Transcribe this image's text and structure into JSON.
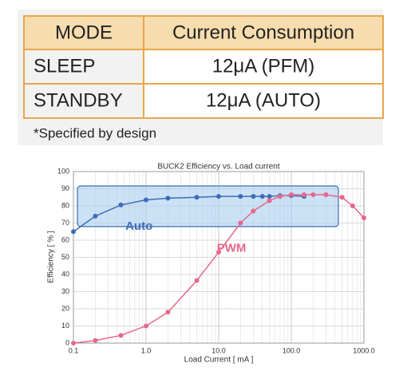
{
  "table": {
    "header": [
      "MODE",
      "Current Consumption"
    ],
    "rows": [
      [
        "SLEEP",
        "12μA (PFM)"
      ],
      [
        "STANDBY",
        "12μA (AUTO)"
      ]
    ],
    "note": "*Specified by design"
  },
  "chart_data": {
    "type": "line",
    "title": "BUCK2 Efficiency vs. Load current",
    "x_label": "Load Current [ mA ]",
    "y_label": "Efficiency [ % ]",
    "xlim": [
      0.1,
      1000
    ],
    "ylim": [
      0,
      100
    ],
    "x_log": true,
    "grid": true,
    "xticks": [
      0.1,
      {
        "value": 1,
        "label": "1.0"
      },
      {
        "value": 10,
        "label": "10.0"
      },
      {
        "value": 100,
        "label": "100.0"
      },
      {
        "value": 1000,
        "label": "1000.0"
      }
    ],
    "yticks": [
      0,
      10,
      20,
      30,
      40,
      50,
      60,
      70,
      80,
      90,
      100
    ],
    "series": [
      {
        "name": "Auto",
        "color": "#3d6db5",
        "x": [
          0.1,
          0.2,
          0.45,
          1,
          2,
          5,
          10,
          20,
          30,
          40,
          50,
          70,
          100,
          150
        ],
        "values": [
          65,
          74,
          80.5,
          83.5,
          84.5,
          85,
          85.5,
          85.5,
          85.5,
          85.5,
          85.5,
          86,
          86,
          85.5
        ]
      },
      {
        "name": "PWM",
        "color": "#e8678a",
        "x": [
          0.1,
          0.2,
          0.45,
          1,
          2,
          5,
          10,
          20,
          30,
          50,
          70,
          100,
          150,
          200,
          300,
          500,
          700,
          1000
        ],
        "values": [
          0,
          1.5,
          4.5,
          10,
          18,
          36.5,
          53,
          70,
          77,
          83,
          85.5,
          86.5,
          86.5,
          86.5,
          86.5,
          85,
          80,
          73
        ]
      }
    ]
  }
}
